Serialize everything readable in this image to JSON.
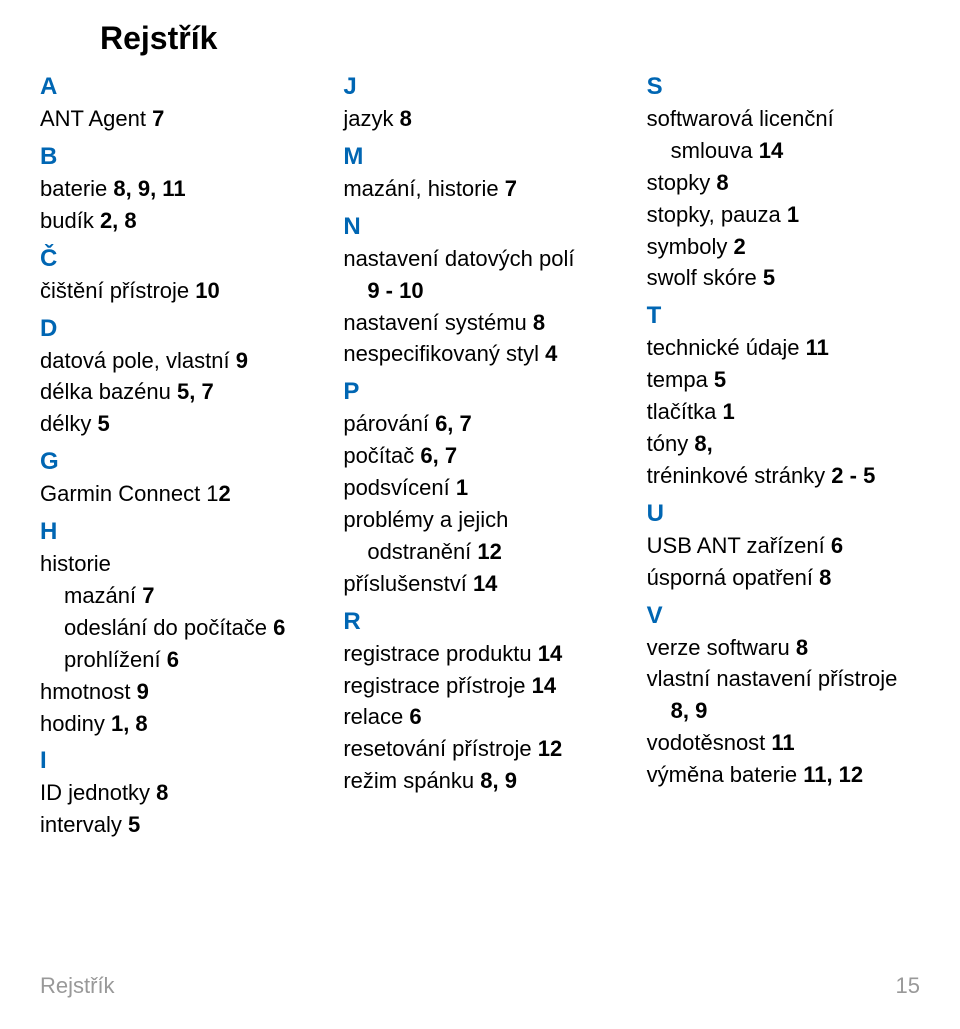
{
  "title": "Rejstřík",
  "footer": {
    "label": "Rejstřík",
    "page": "15"
  },
  "columns": [
    {
      "sections": [
        {
          "letter": "A",
          "entries": [
            {
              "text": "ANT Agent ",
              "pages": "7"
            }
          ]
        },
        {
          "letter": "B",
          "entries": [
            {
              "text": "baterie  ",
              "pages": "8, 9, 11"
            },
            {
              "text": "budík  ",
              "pages": "2, 8"
            }
          ]
        },
        {
          "letter": "Č",
          "entries": [
            {
              "text": "čištění přístroje ",
              "pages": "10"
            }
          ]
        },
        {
          "letter": "D",
          "entries": [
            {
              "text": "datová pole, vlastní ",
              "pages": "9"
            },
            {
              "text": "délka bazénu ",
              "pages": "5, 7"
            },
            {
              "text": "délky ",
              "pages": "5"
            }
          ]
        },
        {
          "letter": "G",
          "entries": [
            {
              "text": "Garmin Connect 1",
              "pages": "2"
            }
          ]
        },
        {
          "letter": "H",
          "entries": [
            {
              "text": "historie",
              "pages": ""
            },
            {
              "text": "mazání ",
              "pages": "7",
              "sub": true
            },
            {
              "text": "odeslání do počítače ",
              "pages": "6",
              "sub": true
            },
            {
              "text": "prohlížení ",
              "pages": "6",
              "sub": true
            },
            {
              "text": "hmotnost ",
              "pages": "9"
            },
            {
              "text": "hodiny ",
              "pages": "1, 8"
            }
          ]
        },
        {
          "letter": "I",
          "entries": [
            {
              "text": "ID jednotky ",
              "pages": "8"
            },
            {
              "text": "intervaly ",
              "pages": "5"
            }
          ]
        }
      ]
    },
    {
      "sections": [
        {
          "letter": "J",
          "entries": [
            {
              "text": "jazyk ",
              "pages": "8"
            }
          ]
        },
        {
          "letter": "M",
          "entries": [
            {
              "text": "mazání, historie ",
              "pages": "7"
            }
          ]
        },
        {
          "letter": "N",
          "entries": [
            {
              "text": "nastavení datových polí",
              "pages": ""
            },
            {
              "text": "",
              "pages": "9 - 10",
              "sub": true
            },
            {
              "text": "nastavení systému ",
              "pages": "8"
            },
            {
              "text": "nespecifikovaný styl ",
              "pages": "4"
            }
          ]
        },
        {
          "letter": "P",
          "entries": [
            {
              "text": "párování ",
              "pages": "6, 7"
            },
            {
              "text": "počítač ",
              "pages": "6, 7"
            },
            {
              "text": "podsvícení ",
              "pages": "1"
            },
            {
              "text": "problémy a jejich",
              "pages": ""
            },
            {
              "text": "odstranění ",
              "pages": "12",
              "sub": true
            },
            {
              "text": "příslušenství ",
              "pages": "14"
            }
          ]
        },
        {
          "letter": "R",
          "entries": [
            {
              "text": "registrace produktu ",
              "pages": "14"
            },
            {
              "text": "registrace přístroje ",
              "pages": "14"
            },
            {
              "text": "relace ",
              "pages": "6"
            },
            {
              "text": "resetování přístroje ",
              "pages": "12"
            },
            {
              "text": "režim spánku ",
              "pages": "8, 9"
            }
          ]
        }
      ]
    },
    {
      "sections": [
        {
          "letter": "S",
          "entries": [
            {
              "text": "softwarová licenční",
              "pages": ""
            },
            {
              "text": "smlouva ",
              "pages": "14",
              "sub": true
            },
            {
              "text": "stopky ",
              "pages": "8"
            },
            {
              "text": "stopky, pauza ",
              "pages": "1"
            },
            {
              "text": "symboly ",
              "pages": "2"
            },
            {
              "text": "swolf skóre ",
              "pages": "5"
            }
          ]
        },
        {
          "letter": "T",
          "entries": [
            {
              "text": "technické údaje ",
              "pages": "11"
            },
            {
              "text": "tempa ",
              "pages": "5"
            },
            {
              "text": "tlačítka ",
              "pages": "1"
            },
            {
              "text": "tóny ",
              "pages": "8,"
            },
            {
              "text": "tréninkové stránky ",
              "pages": "2 - 5"
            }
          ]
        },
        {
          "letter": "U",
          "entries": [
            {
              "text": "USB ANT zařízení ",
              "pages": "6"
            },
            {
              "text": "úsporná opatření ",
              "pages": "8"
            }
          ]
        },
        {
          "letter": "V",
          "entries": [
            {
              "text": "verze softwaru ",
              "pages": "8"
            },
            {
              "text": "vlastní nastavení přístroje",
              "pages": ""
            },
            {
              "text": "",
              "pages": "8, 9",
              "sub": true
            },
            {
              "text": "vodotěsnost ",
              "pages": "11"
            },
            {
              "text": "výměna baterie ",
              "pages": "11, 12"
            }
          ]
        }
      ]
    }
  ]
}
